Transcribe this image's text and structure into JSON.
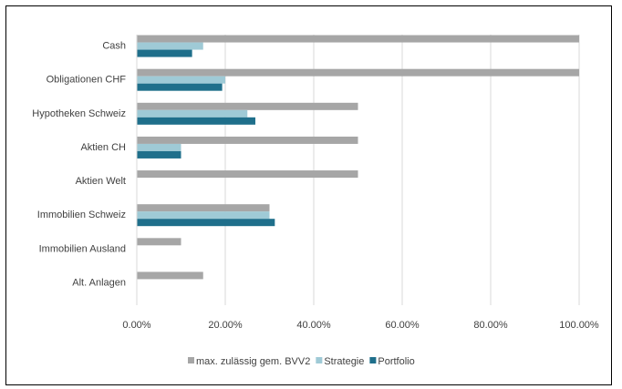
{
  "chart_data": {
    "type": "bar",
    "orientation": "horizontal",
    "categories": [
      "Cash",
      "Obligationen CHF",
      "Hypotheken Schweiz",
      "Aktien CH",
      "Aktien Welt",
      "Immobilien Schweiz",
      "Immobilien Ausland",
      "Alt. Anlagen"
    ],
    "series": [
      {
        "name": "max. zulässig gem. BVV2",
        "color": "#a6a6a6",
        "values": [
          1.0,
          1.0,
          0.5,
          0.5,
          0.5,
          0.3,
          0.1,
          0.15
        ]
      },
      {
        "name": "Strategie",
        "color": "#9fcad6",
        "values": [
          0.15,
          0.2,
          0.25,
          0.1,
          0.0,
          0.3,
          0.0,
          0.0
        ]
      },
      {
        "name": "Portfolio",
        "color": "#1f6f8b",
        "values": [
          0.125,
          0.193,
          0.268,
          0.1,
          0.0,
          0.312,
          0.0,
          0.0
        ]
      }
    ],
    "xlim": [
      0,
      1.0
    ],
    "xticks": [
      "0.00%",
      "20.00%",
      "40.00%",
      "60.00%",
      "80.00%",
      "100.00%"
    ],
    "grid": true,
    "legend_position": "bottom"
  }
}
